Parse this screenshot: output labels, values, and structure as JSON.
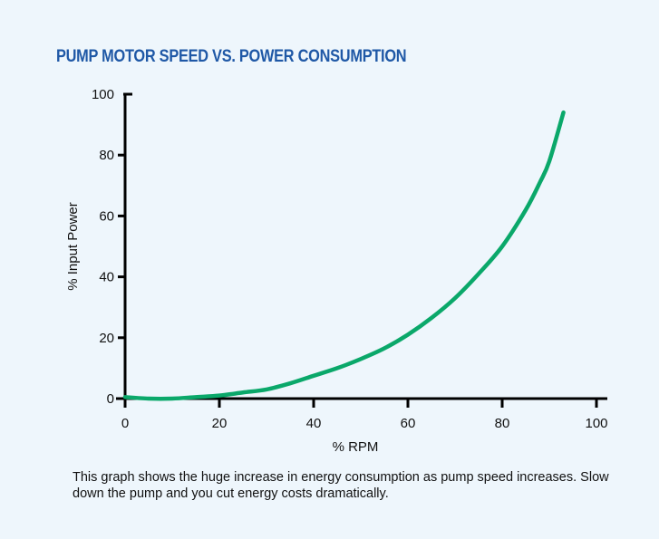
{
  "chart_data": {
    "type": "line",
    "title": "PUMP MOTOR SPEED VS. POWER CONSUMPTION",
    "xlabel": "% RPM",
    "ylabel": "% Input Power",
    "xlim": [
      0,
      100
    ],
    "ylim": [
      0,
      100
    ],
    "xticks": [
      0,
      20,
      40,
      60,
      80,
      100
    ],
    "yticks": [
      0,
      20,
      40,
      60,
      80,
      100
    ],
    "grid": false,
    "series": [
      {
        "color": "#0aa86a",
        "x": [
          0,
          5,
          10,
          15,
          20,
          25,
          30,
          35,
          40,
          45,
          50,
          55,
          60,
          65,
          70,
          75,
          80,
          85,
          88,
          90,
          93
        ],
        "y": [
          0.5,
          0,
          0,
          0.5,
          1,
          2,
          3,
          5,
          7.5,
          10,
          13,
          16.5,
          21,
          26.5,
          33,
          41,
          50,
          62,
          71,
          78,
          94
        ]
      }
    ]
  },
  "caption": "This graph shows the huge increase in energy consumption as pump speed increases. Slow down the pump and you cut energy costs dramatically."
}
